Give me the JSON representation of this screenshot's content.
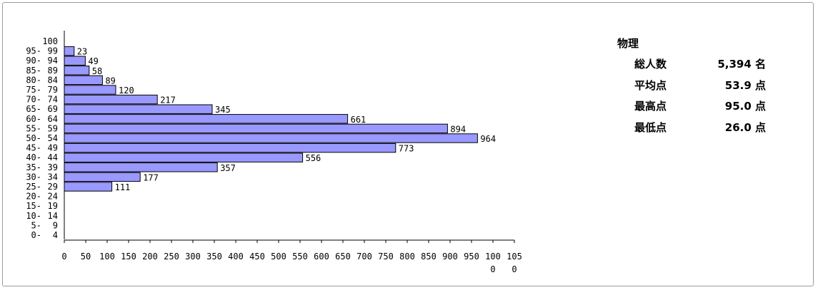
{
  "chart_data": {
    "type": "bar",
    "orientation": "horizontal",
    "categories": [
      "100",
      "95- 99",
      "90- 94",
      "85- 89",
      "80- 84",
      "75- 79",
      "70- 74",
      "65- 69",
      "60- 64",
      "55- 59",
      "50- 54",
      "45- 49",
      "40- 44",
      "35- 39",
      "30- 34",
      "25- 29",
      "20- 24",
      "15- 19",
      "10- 14",
      "5- 9",
      "0- 4"
    ],
    "values": [
      0,
      23,
      49,
      58,
      89,
      120,
      217,
      345,
      661,
      894,
      964,
      773,
      556,
      357,
      177,
      111,
      0,
      0,
      0,
      0,
      0
    ],
    "data_labels": [
      "",
      "23",
      "49",
      "58",
      "89",
      "120",
      "217",
      "345",
      "661",
      "894",
      "964",
      "773",
      "556",
      "357",
      "177",
      "111",
      "",
      "",
      "",
      "",
      ""
    ],
    "xlim": [
      0,
      1050
    ],
    "x_ticks": [
      0,
      50,
      100,
      150,
      200,
      250,
      300,
      350,
      400,
      450,
      500,
      550,
      600,
      650,
      700,
      750,
      800,
      850,
      900,
      950,
      1000,
      1050
    ],
    "x_tick_labels": [
      [
        "0"
      ],
      [
        "50"
      ],
      [
        "100"
      ],
      [
        "150"
      ],
      [
        "200"
      ],
      [
        "250"
      ],
      [
        "300"
      ],
      [
        "350"
      ],
      [
        "400"
      ],
      [
        "450"
      ],
      [
        "500"
      ],
      [
        "550"
      ],
      [
        "600"
      ],
      [
        "650"
      ],
      [
        "700"
      ],
      [
        "750"
      ],
      [
        "800"
      ],
      [
        "850"
      ],
      [
        "900"
      ],
      [
        "950"
      ],
      [
        "100",
        "0"
      ],
      [
        "105",
        "0"
      ]
    ],
    "bar_color": "#9999ff",
    "bar_edge_color": "#000000",
    "grid": false,
    "legend": "none"
  },
  "stats": {
    "subject": "物理",
    "rows": [
      {
        "label": "総人数",
        "value": "5,394 名"
      },
      {
        "label": "平均点",
        "value": "53.9 点"
      },
      {
        "label": "最高点",
        "value": "95.0 点"
      },
      {
        "label": "最低点",
        "value": "26.0 点"
      }
    ]
  }
}
